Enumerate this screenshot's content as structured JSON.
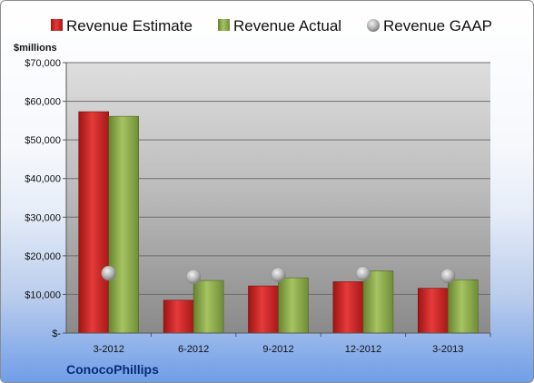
{
  "chart_data": {
    "type": "bar",
    "title": "",
    "ylabel": "$millions",
    "xlabel": "",
    "company": "ConocoPhillips",
    "categories": [
      "3-2012",
      "6-2012",
      "9-2012",
      "12-2012",
      "3-2013"
    ],
    "series": [
      {
        "name": "Revenue Estimate",
        "type": "bar",
        "color": "#d42a2a",
        "values": [
          57300,
          8500,
          12200,
          13300,
          11600
        ]
      },
      {
        "name": "Revenue Actual",
        "type": "bar",
        "color": "#8fae4e",
        "values": [
          56100,
          13600,
          14300,
          16100,
          13800
        ]
      },
      {
        "name": "Revenue GAAP",
        "type": "marker",
        "color": "#b9b9b9",
        "values": [
          15500,
          14600,
          15100,
          15400,
          14800
        ]
      }
    ],
    "ylim": [
      0,
      70000
    ],
    "yticks": [
      {
        "value": 0,
        "label": "$-"
      },
      {
        "value": 10000,
        "label": "$10,000"
      },
      {
        "value": 20000,
        "label": "$20,000"
      },
      {
        "value": 30000,
        "label": "$30,000"
      },
      {
        "value": 40000,
        "label": "$40,000"
      },
      {
        "value": 50000,
        "label": "$50,000"
      },
      {
        "value": 60000,
        "label": "$60,000"
      },
      {
        "value": 70000,
        "label": "$70,000"
      }
    ],
    "grid": true,
    "legend_position": "top"
  }
}
